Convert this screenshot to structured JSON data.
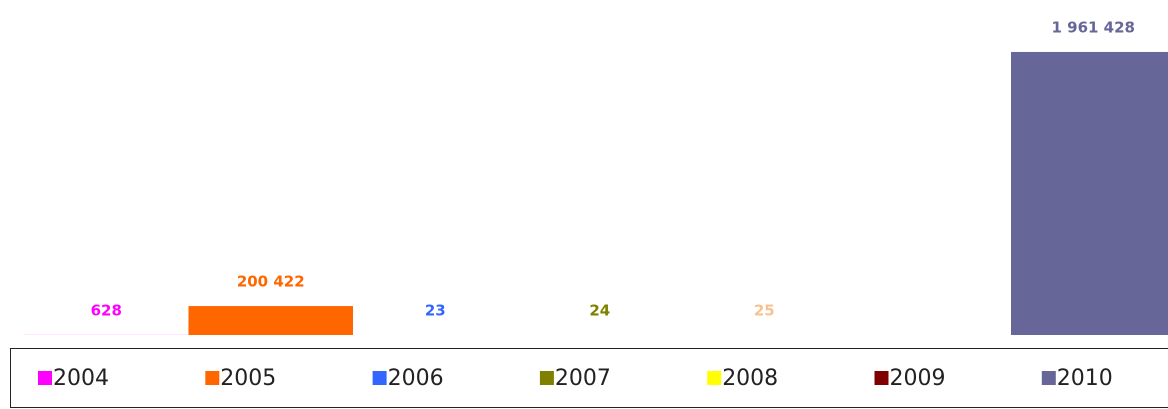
{
  "chart_data": {
    "type": "bar",
    "categories": [
      "2004",
      "2005",
      "2006",
      "2007",
      "2008",
      "2009",
      "2010"
    ],
    "values": [
      628,
      200422,
      23,
      24,
      25,
      null,
      1961428
    ],
    "value_labels": [
      "628",
      "200 422",
      "23",
      "24",
      "25",
      null,
      "1 961 428"
    ],
    "colors": [
      "#ff00ff",
      "#ff6600",
      "#3366ff",
      "#808000",
      "#ffff00",
      "#800000",
      "#666699"
    ],
    "value_label_colors": [
      "#ff00ff",
      "#ff6600",
      "#3366ff",
      "#808000",
      "#fac090",
      "#800000",
      "#666699"
    ],
    "ylim": [
      0,
      2000000
    ],
    "legend": "bottom"
  }
}
